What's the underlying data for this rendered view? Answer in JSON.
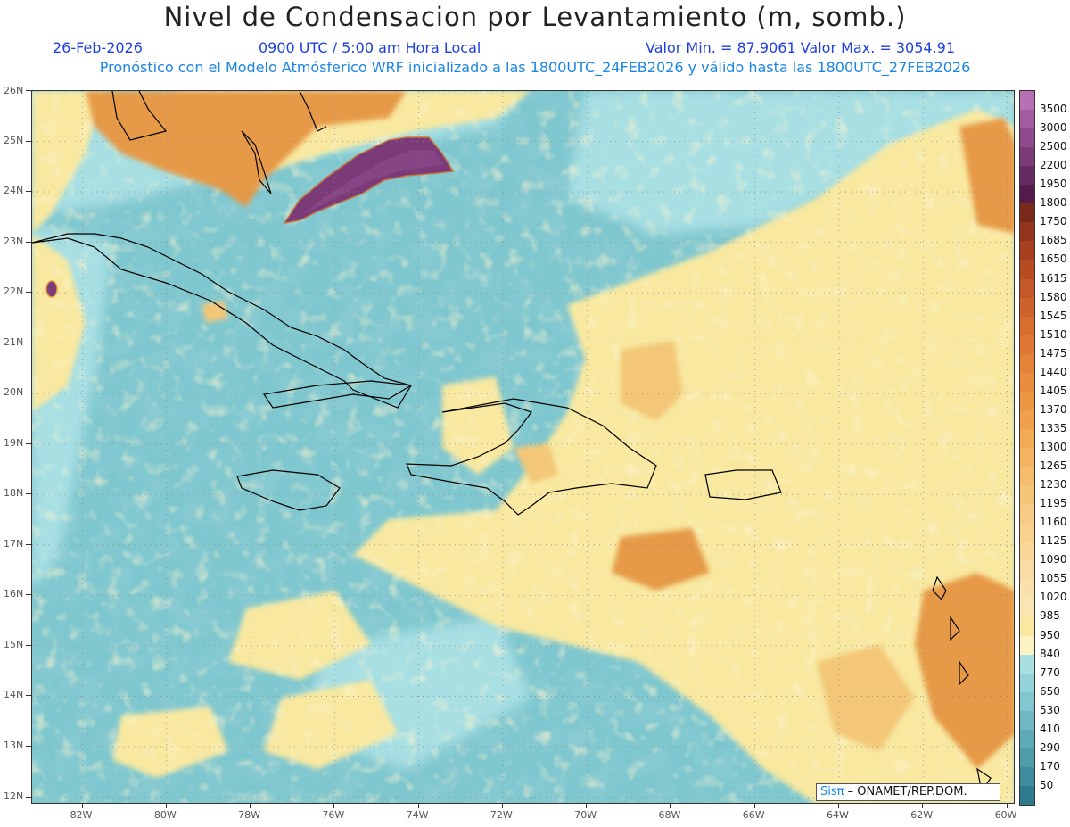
{
  "header": {
    "title": "Nivel de Condensacion por Levantamiento (m, somb.)",
    "date": "26-Feb-2026",
    "time": "0900 UTC / 5:00 am Hora Local",
    "minmax": "Valor Min. = 87.9061   Valor Max. = 3054.91",
    "forecast": "Pronóstico con el Modelo Atmósferico WRF inicializado a las 1800UTC_24FEB2026 y válido hasta las  1800UTC_27FEB2026"
  },
  "map": {
    "lon_range": [
      -83.2,
      -59.8
    ],
    "lat_range": [
      11.85,
      26.0
    ],
    "lon_ticks": [
      {
        "value": -82,
        "label": "82W"
      },
      {
        "value": -80,
        "label": "80W"
      },
      {
        "value": -78,
        "label": "78W"
      },
      {
        "value": -76,
        "label": "76W"
      },
      {
        "value": -74,
        "label": "74W"
      },
      {
        "value": -72,
        "label": "72W"
      },
      {
        "value": -70,
        "label": "70W"
      },
      {
        "value": -68,
        "label": "68W"
      },
      {
        "value": -66,
        "label": "66W"
      },
      {
        "value": -64,
        "label": "64W"
      },
      {
        "value": -62,
        "label": "62W"
      },
      {
        "value": -60,
        "label": "60W"
      }
    ],
    "lat_ticks": [
      {
        "value": 26,
        "label": "26N"
      },
      {
        "value": 25,
        "label": "25N"
      },
      {
        "value": 24,
        "label": "24N"
      },
      {
        "value": 23,
        "label": "23N"
      },
      {
        "value": 22,
        "label": "22N"
      },
      {
        "value": 21,
        "label": "21N"
      },
      {
        "value": 20,
        "label": "20N"
      },
      {
        "value": 19,
        "label": "19N"
      },
      {
        "value": 18,
        "label": "18N"
      },
      {
        "value": 17,
        "label": "17N"
      },
      {
        "value": 16,
        "label": "16N"
      },
      {
        "value": 15,
        "label": "15N"
      },
      {
        "value": 14,
        "label": "14N"
      },
      {
        "value": 13,
        "label": "13N"
      },
      {
        "value": 12,
        "label": "12N"
      }
    ],
    "colors": {
      "ocean_base": "#7fc7cf",
      "ocean_dark": "#4f9fae",
      "ocean_light": "#a7dfe3",
      "yellow": "#f8e8a0",
      "light_orange": "#f3c777",
      "orange": "#e69a47",
      "purple": "#7b3a78",
      "coast": "#000000",
      "grid": "#8c8c8c"
    }
  },
  "colorbar": {
    "levels": [
      {
        "label": "3500",
        "color": "#b86fb4"
      },
      {
        "label": "3000",
        "color": "#a35ca0"
      },
      {
        "label": "2500",
        "color": "#8f4a8c"
      },
      {
        "label": "2200",
        "color": "#7b3a78"
      },
      {
        "label": "1950",
        "color": "#682a63"
      },
      {
        "label": "1800",
        "color": "#551b4c"
      },
      {
        "label": "1750",
        "color": "#7a2a1a"
      },
      {
        "label": "1685",
        "color": "#93341c"
      },
      {
        "label": "1650",
        "color": "#a8401f"
      },
      {
        "label": "1615",
        "color": "#b74c23"
      },
      {
        "label": "1580",
        "color": "#c35828"
      },
      {
        "label": "1545",
        "color": "#cd632c"
      },
      {
        "label": "1510",
        "color": "#d66e30"
      },
      {
        "label": "1475",
        "color": "#de7834"
      },
      {
        "label": "1440",
        "color": "#e48238"
      },
      {
        "label": "1405",
        "color": "#e98c3c"
      },
      {
        "label": "1370",
        "color": "#ed9642"
      },
      {
        "label": "1335",
        "color": "#f0a04a"
      },
      {
        "label": "1300",
        "color": "#f2aa54"
      },
      {
        "label": "1265",
        "color": "#f4b35f"
      },
      {
        "label": "1230",
        "color": "#f5bc6b"
      },
      {
        "label": "1195",
        "color": "#f6c477"
      },
      {
        "label": "1160",
        "color": "#f7cb83"
      },
      {
        "label": "1125",
        "color": "#f8d18f"
      },
      {
        "label": "1090",
        "color": "#f8d799"
      },
      {
        "label": "1055",
        "color": "#f9dca3"
      },
      {
        "label": "1020",
        "color": "#f9e1ab"
      },
      {
        "label": "985",
        "color": "#f9e5b2"
      },
      {
        "label": "950",
        "color": "#f8e8a0"
      },
      {
        "label": "840",
        "color": "#fbf3c4"
      },
      {
        "label": "770",
        "color": "#a7dfe3"
      },
      {
        "label": "650",
        "color": "#94d3da"
      },
      {
        "label": "530",
        "color": "#82c6cf"
      },
      {
        "label": "410",
        "color": "#6fb8c3"
      },
      {
        "label": "290",
        "color": "#5eaab7"
      },
      {
        "label": "170",
        "color": "#4e9baa"
      },
      {
        "label": "50",
        "color": "#3f8c9d"
      }
    ],
    "bottom_color": "#2f7b8d"
  },
  "credit": {
    "sis": "Sisπ",
    "org": "– ONAMET/REP.DOM."
  }
}
